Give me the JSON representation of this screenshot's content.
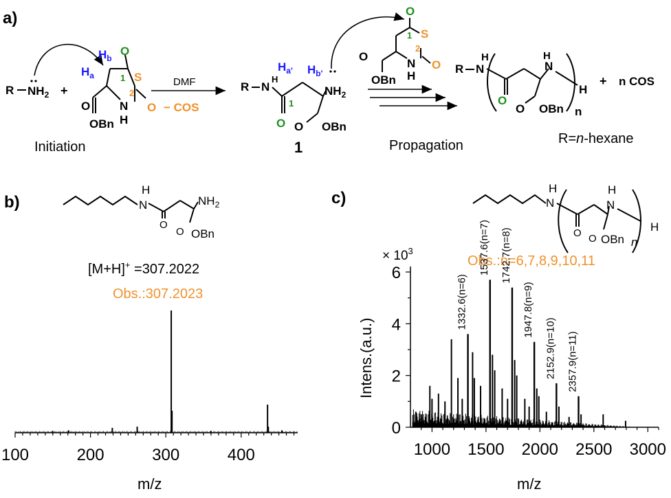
{
  "colors": {
    "blue": "#1a1aff",
    "green": "#1f8f1f",
    "orange": "#f0912a",
    "black": "#000000"
  },
  "panel_a": {
    "label": "a)",
    "amine": "R",
    "amine_group": "NH2",
    "plus1": "+",
    "hb": "H",
    "hb_sub": "b",
    "ha": "H",
    "ha_sub": "a",
    "o_top": "O",
    "s_ring": "S",
    "num1": "1",
    "num2": "2",
    "o_right": "O",
    "nh_ring": "N",
    "h_ring": "H",
    "obn": "OBn",
    "o_ester": "O",
    "reagent": "DMF",
    "byproduct": "− COS",
    "initiation": "Initiation",
    "cpd_r": "R",
    "cpd_nh": "N",
    "cpd_h": "H",
    "ha2": "H",
    "ha2_sub": "a'",
    "hb2": "H",
    "hb2_sub": "b'",
    "cpd_nh2": "NH2",
    "cpd_o1": "O",
    "cpd_num1": "1",
    "cpd_obn": "OBn",
    "cpd_o_ester": "O",
    "compound_label": "1",
    "m2_o": "O",
    "m2_s": "S",
    "m2_num1": "1",
    "m2_num2": "2",
    "m2_o2": "O",
    "m2_n": "N",
    "m2_h": "H",
    "m2_o_ester": "O",
    "m2_obn": "OBn",
    "propagation": "Propagation",
    "p_r": "R",
    "p_n": "N",
    "p_h": "H",
    "p_nh": "N",
    "p_nh_h": "H",
    "p_o": "O",
    "p_o_ester": "O",
    "p_obn": "OBn",
    "p_n_sub": "n",
    "p_h_end": "H",
    "plus2": "+",
    "cos": "n COS",
    "r_def": "R=n-hexane"
  },
  "panel_b": {
    "label": "b)",
    "struct_h": "H",
    "struct_n": "N",
    "struct_nh2": "NH2",
    "struct_o": "O",
    "struct_o2": "O",
    "struct_obn": "OBn",
    "calc": "[M+H]+ =307.2022",
    "obs": "Obs.:307.2023",
    "xlabel": "m/z"
  },
  "panel_c": {
    "label": "c)",
    "struct_h": "H",
    "struct_n": "N",
    "struct_nh_h": "H",
    "struct_nh": "N",
    "struct_o": "O",
    "struct_o2": "O",
    "struct_obn": "OBn",
    "struct_sub": "n",
    "struct_h_end": "H",
    "scale": "× 10",
    "scale_exp": "3",
    "obs": "Obs.:n=6,7,8,9,10,11",
    "ylabel": "Intens.(a.u.)",
    "xlabel": "m/z"
  },
  "chart_data": [
    {
      "type": "bar",
      "title": "",
      "xlabel": "m/z",
      "ylabel": "",
      "xlim": [
        100,
        475
      ],
      "x_ticks": [
        100,
        200,
        300,
        400
      ],
      "peaks": [
        {
          "x": 307.2,
          "y": 1.0
        },
        {
          "x": 308.2,
          "y": 0.18
        },
        {
          "x": 435.0,
          "y": 0.23
        },
        {
          "x": 436.0,
          "y": 0.05
        },
        {
          "x": 229.0,
          "y": 0.04
        },
        {
          "x": 262.0,
          "y": 0.05
        },
        {
          "x": 171.0,
          "y": 0.02
        },
        {
          "x": 150.0,
          "y": 0.015
        },
        {
          "x": 360.0,
          "y": 0.015
        },
        {
          "x": 454.0,
          "y": 0.02
        }
      ],
      "annotations": [
        "[M+H]+ =307.2022",
        "Obs.:307.2023"
      ]
    },
    {
      "type": "bar",
      "title": "",
      "xlabel": "m/z",
      "ylabel": "Intens.(a.u.)",
      "y_scale_label": "× 10^3",
      "xlim": [
        800,
        3100
      ],
      "ylim": [
        0,
        6
      ],
      "x_ticks": [
        1000,
        1500,
        2000,
        2500,
        3000
      ],
      "y_ticks": [
        0,
        2,
        4,
        6
      ],
      "labeled_peaks": [
        {
          "x": 1332.6,
          "y": 3.6,
          "label": "1332.6(n=6)"
        },
        {
          "x": 1537.6,
          "y": 5.7,
          "label": "1537.6(n=7)"
        },
        {
          "x": 1742.7,
          "y": 5.4,
          "label": "1742.7(n=8)"
        },
        {
          "x": 1947.8,
          "y": 3.3,
          "label": "1947.8(n=9)"
        },
        {
          "x": 2152.9,
          "y": 1.7,
          "label": "2152.9(n=10)"
        },
        {
          "x": 2357.9,
          "y": 1.2,
          "label": "2357.9(n=11)"
        }
      ],
      "other_peaks": [
        {
          "x": 1180,
          "y": 3.4
        },
        {
          "x": 1376,
          "y": 2.9
        },
        {
          "x": 1392,
          "y": 1.9
        },
        {
          "x": 1560,
          "y": 2.8
        },
        {
          "x": 1581,
          "y": 2.2
        },
        {
          "x": 1766,
          "y": 2.6
        },
        {
          "x": 1785,
          "y": 2.0
        },
        {
          "x": 1971,
          "y": 1.5
        },
        {
          "x": 1990,
          "y": 1.2
        },
        {
          "x": 2176,
          "y": 0.8
        },
        {
          "x": 2381,
          "y": 0.5
        },
        {
          "x": 2586,
          "y": 0.5
        },
        {
          "x": 2794,
          "y": 0.25
        },
        {
          "x": 980,
          "y": 1.6
        },
        {
          "x": 1000,
          "y": 1.1
        },
        {
          "x": 1060,
          "y": 1.3
        },
        {
          "x": 1120,
          "y": 1.0
        },
        {
          "x": 1240,
          "y": 1.9
        },
        {
          "x": 1280,
          "y": 1.1
        },
        {
          "x": 1450,
          "y": 1.6
        },
        {
          "x": 1650,
          "y": 1.5
        },
        {
          "x": 1700,
          "y": 1.1
        },
        {
          "x": 1860,
          "y": 1.1
        },
        {
          "x": 1900,
          "y": 0.8
        },
        {
          "x": 2060,
          "y": 0.6
        },
        {
          "x": 2270,
          "y": 0.4
        },
        {
          "x": 850,
          "y": 0.6
        },
        {
          "x": 900,
          "y": 0.5
        }
      ],
      "annotations": [
        "Obs.:n=6,7,8,9,10,11"
      ]
    }
  ]
}
